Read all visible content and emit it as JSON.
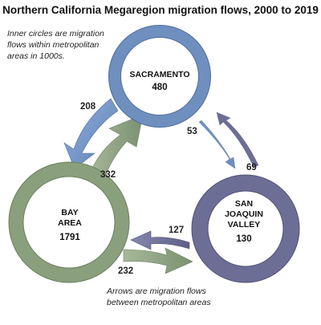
{
  "title": "Northern California Megaregion migration flows, 2000 to 2019",
  "notes": {
    "inner": [
      "Inner circles are migration",
      "flows within metropolitan",
      "areas in 1000s."
    ],
    "arrows": [
      "Arrows are migration flows",
      "between metropolitan areas"
    ]
  },
  "regions": {
    "sacramento": {
      "name": [
        "SACRAMENTO"
      ],
      "value": "480",
      "color": "#6f8fbf"
    },
    "bay_area": {
      "name": [
        "BAY",
        "AREA"
      ],
      "value": "1791",
      "color": "#8a9f7c"
    },
    "san_joaquin": {
      "name": [
        "SAN",
        "JOAQUIN",
        "VALLEY"
      ],
      "value": "130",
      "color": "#6c6e96"
    }
  },
  "flows": {
    "sac_to_bay": {
      "value": "208",
      "color": "#6f8fbf"
    },
    "bay_to_sac": {
      "value": "332",
      "color": "#8a9f7c"
    },
    "sac_to_sjv": {
      "value": "53",
      "color": "#6f8fbf"
    },
    "sjv_to_sac": {
      "value": "69",
      "color": "#6c6e96"
    },
    "sjv_to_bay": {
      "value": "127",
      "color": "#6c6e96"
    },
    "bay_to_sjv": {
      "value": "232",
      "color": "#8a9f7c"
    }
  }
}
